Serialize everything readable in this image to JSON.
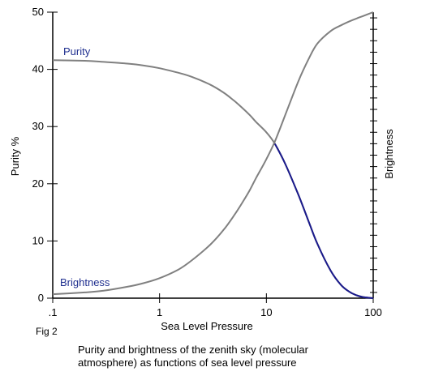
{
  "figure_label": "Fig 2",
  "caption_lines": [
    "Purity and brightness of the zenith sky (molecular",
    "atmosphere) as functions of sea level pressure"
  ],
  "colors": {
    "curve": "#808080",
    "highlight": "#1a1a8c",
    "series_label": "#1f2f8f",
    "axis": "#000000"
  },
  "chart_data": {
    "type": "line",
    "xlabel": "Sea Level Pressure",
    "ylabel_left": "Purity %",
    "ylabel_right": "Brightness",
    "xscale": "log",
    "xlim": [
      0.1,
      100
    ],
    "ylim": [
      0,
      50
    ],
    "x_ticks": [
      {
        "value": 0.1,
        "label": ".1"
      },
      {
        "value": 1,
        "label": "1"
      },
      {
        "value": 10,
        "label": "10"
      },
      {
        "value": 100,
        "label": "100"
      }
    ],
    "y_ticks": [
      {
        "value": 0,
        "label": "0"
      },
      {
        "value": 10,
        "label": "10"
      },
      {
        "value": 20,
        "label": "20"
      },
      {
        "value": 30,
        "label": "30"
      },
      {
        "value": 40,
        "label": "40"
      },
      {
        "value": 50,
        "label": "50"
      }
    ],
    "right_axis_ticks": 25,
    "grid": false,
    "series": [
      {
        "name": "Purity",
        "x": [
          0.1,
          0.2,
          0.3,
          0.5,
          0.7,
          1,
          1.5,
          2,
          3,
          4,
          5,
          6,
          7,
          8,
          10,
          12,
          15,
          20,
          25,
          30,
          40,
          50,
          60,
          70,
          80,
          100
        ],
        "y": [
          41.6,
          41.5,
          41.3,
          41.0,
          40.7,
          40.2,
          39.4,
          38.7,
          37.3,
          35.9,
          34.5,
          33.2,
          32.0,
          30.8,
          29.0,
          27.0,
          23.5,
          18.0,
          13.3,
          9.5,
          4.8,
          2.3,
          1.1,
          0.5,
          0.2,
          0.0
        ]
      },
      {
        "name": "Brightness",
        "x": [
          0.1,
          0.2,
          0.3,
          0.5,
          0.7,
          1,
          1.5,
          2,
          3,
          4,
          5,
          6,
          7,
          8,
          10,
          12,
          15,
          20,
          25,
          30,
          40,
          50,
          60,
          70,
          80,
          100
        ],
        "y": [
          0.7,
          1.0,
          1.3,
          2.0,
          2.6,
          3.5,
          5.0,
          6.6,
          9.4,
          12.0,
          14.5,
          16.8,
          18.9,
          21.0,
          24.3,
          27.4,
          32.0,
          38.0,
          41.9,
          44.5,
          46.7,
          47.7,
          48.4,
          48.9,
          49.3,
          50.0
        ]
      }
    ],
    "annotations": [
      {
        "text": "Purity",
        "series": "Purity"
      },
      {
        "text": "Brightness",
        "series": "Brightness"
      }
    ]
  }
}
